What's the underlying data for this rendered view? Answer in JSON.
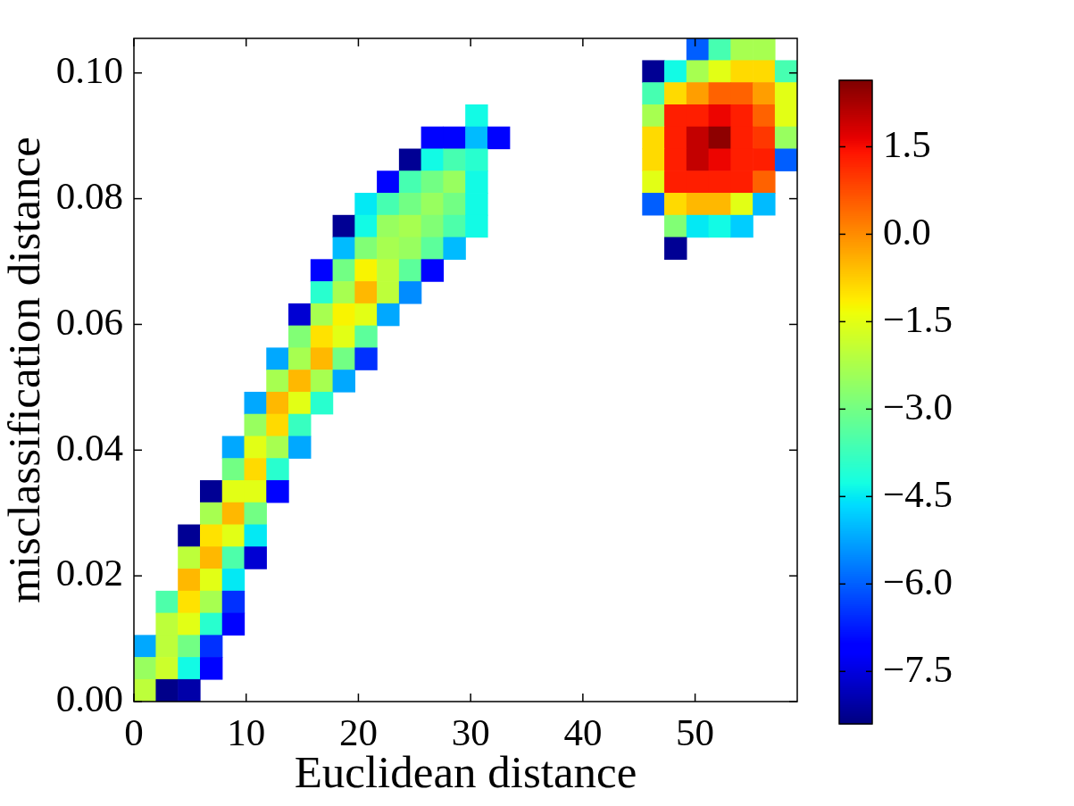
{
  "chart_data": {
    "type": "heatmap",
    "xlabel": "Euclidean distance",
    "ylabel": "misclassification distance",
    "cells": [
      [
        null,
        null,
        null,
        null,
        null,
        null,
        null,
        null,
        null,
        null,
        null,
        null,
        null,
        null,
        null,
        null,
        null,
        null,
        null,
        null,
        null,
        null,
        null,
        null,
        null,
        -6,
        -3.6,
        -2.3,
        -2.3,
        null
      ],
      [
        null,
        null,
        null,
        null,
        null,
        null,
        null,
        null,
        null,
        null,
        null,
        null,
        null,
        null,
        null,
        null,
        null,
        null,
        null,
        null,
        null,
        null,
        null,
        -8.2,
        -4.3,
        -2.3,
        -1.5,
        -0.9,
        -0.9,
        -3.6
      ],
      [
        null,
        null,
        null,
        null,
        null,
        null,
        null,
        null,
        null,
        null,
        null,
        null,
        null,
        null,
        null,
        null,
        null,
        null,
        null,
        null,
        null,
        null,
        null,
        -3.6,
        -0.9,
        -0.2,
        0.5,
        0.5,
        -0.2,
        -1.5
      ],
      [
        null,
        null,
        null,
        null,
        null,
        null,
        null,
        null,
        null,
        null,
        null,
        null,
        null,
        null,
        null,
        -4.3,
        null,
        null,
        null,
        null,
        null,
        null,
        null,
        -2.3,
        1.3,
        1.3,
        1.6,
        1.3,
        0.5,
        -1.5
      ],
      [
        null,
        null,
        null,
        null,
        null,
        null,
        null,
        null,
        null,
        null,
        null,
        null,
        null,
        -7,
        -7,
        -5,
        -7,
        null,
        null,
        null,
        null,
        null,
        null,
        -0.9,
        1.3,
        2,
        2.5,
        1.3,
        1,
        -2.5
      ],
      [
        null,
        null,
        null,
        null,
        null,
        null,
        null,
        null,
        null,
        null,
        null,
        null,
        -8.2,
        -4.3,
        -3.6,
        -4,
        null,
        null,
        null,
        null,
        null,
        null,
        null,
        -0.9,
        1.3,
        2,
        1.6,
        1.3,
        1.3,
        -6
      ],
      [
        null,
        null,
        null,
        null,
        null,
        null,
        null,
        null,
        null,
        null,
        null,
        -7,
        -3.6,
        -3,
        -2.5,
        -4.3,
        null,
        null,
        null,
        null,
        null,
        null,
        null,
        -1.5,
        1.3,
        1.3,
        1.3,
        1.3,
        0.5,
        null
      ],
      [
        null,
        null,
        null,
        null,
        null,
        null,
        null,
        null,
        null,
        null,
        -4.5,
        -3.6,
        -3,
        -2.5,
        -3,
        -4.3,
        null,
        null,
        null,
        null,
        null,
        null,
        null,
        -6,
        -0.9,
        -0.5,
        -0.5,
        -1.5,
        -5,
        null
      ],
      [
        null,
        null,
        null,
        null,
        null,
        null,
        null,
        null,
        null,
        -8.2,
        -4.3,
        -2.5,
        -2.3,
        -2.8,
        -3.5,
        -4.3,
        null,
        null,
        null,
        null,
        null,
        null,
        null,
        null,
        -2.8,
        -4.5,
        -4.3,
        -4.8,
        null,
        null
      ],
      [
        null,
        null,
        null,
        null,
        null,
        null,
        null,
        null,
        null,
        -5,
        -2.8,
        -2.3,
        -2.5,
        -3.3,
        -5,
        null,
        null,
        null,
        null,
        null,
        null,
        null,
        null,
        null,
        -8.2,
        null,
        null,
        null,
        null,
        null
      ],
      [
        null,
        null,
        null,
        null,
        null,
        null,
        null,
        null,
        -7,
        -3,
        -1.2,
        -2,
        -3.3,
        -7,
        null,
        null,
        null,
        null,
        null,
        null,
        null,
        null,
        null,
        null,
        null,
        null,
        null,
        null,
        null,
        null
      ],
      [
        null,
        null,
        null,
        null,
        null,
        null,
        null,
        null,
        -4,
        -2.3,
        -0.5,
        -2,
        -5.5,
        null,
        null,
        null,
        null,
        null,
        null,
        null,
        null,
        null,
        null,
        null,
        null,
        null,
        null,
        null,
        null,
        null
      ],
      [
        null,
        null,
        null,
        null,
        null,
        null,
        null,
        -7.6,
        -2.3,
        -1.2,
        -1.5,
        -5.2,
        null,
        null,
        null,
        null,
        null,
        null,
        null,
        null,
        null,
        null,
        null,
        null,
        null,
        null,
        null,
        null,
        null,
        null
      ],
      [
        null,
        null,
        null,
        null,
        null,
        null,
        null,
        -2.8,
        -1,
        -1.5,
        -3.3,
        null,
        null,
        null,
        null,
        null,
        null,
        null,
        null,
        null,
        null,
        null,
        null,
        null,
        null,
        null,
        null,
        null,
        null,
        null
      ],
      [
        null,
        null,
        null,
        null,
        null,
        null,
        -5.2,
        -2.3,
        -0.5,
        -3,
        -6.5,
        null,
        null,
        null,
        null,
        null,
        null,
        null,
        null,
        null,
        null,
        null,
        null,
        null,
        null,
        null,
        null,
        null,
        null,
        null
      ],
      [
        null,
        null,
        null,
        null,
        null,
        null,
        -2.3,
        -0.5,
        -2.3,
        -5.2,
        null,
        null,
        null,
        null,
        null,
        null,
        null,
        null,
        null,
        null,
        null,
        null,
        null,
        null,
        null,
        null,
        null,
        null,
        null,
        null
      ],
      [
        null,
        null,
        null,
        null,
        null,
        -5.2,
        -0.5,
        -1.5,
        -4,
        null,
        null,
        null,
        null,
        null,
        null,
        null,
        null,
        null,
        null,
        null,
        null,
        null,
        null,
        null,
        null,
        null,
        null,
        null,
        null,
        null
      ],
      [
        null,
        null,
        null,
        null,
        null,
        -2.5,
        -0.9,
        -3.8,
        null,
        null,
        null,
        null,
        null,
        null,
        null,
        null,
        null,
        null,
        null,
        null,
        null,
        null,
        null,
        null,
        null,
        null,
        null,
        null,
        null,
        null
      ],
      [
        null,
        null,
        null,
        null,
        -5.2,
        -1.5,
        -2.3,
        -5.2,
        null,
        null,
        null,
        null,
        null,
        null,
        null,
        null,
        null,
        null,
        null,
        null,
        null,
        null,
        null,
        null,
        null,
        null,
        null,
        null,
        null,
        null
      ],
      [
        null,
        null,
        null,
        null,
        -3,
        -0.9,
        -4,
        null,
        null,
        null,
        null,
        null,
        null,
        null,
        null,
        null,
        null,
        null,
        null,
        null,
        null,
        null,
        null,
        null,
        null,
        null,
        null,
        null,
        null,
        null
      ],
      [
        null,
        null,
        null,
        -8.2,
        -1.5,
        -1.5,
        -7,
        null,
        null,
        null,
        null,
        null,
        null,
        null,
        null,
        null,
        null,
        null,
        null,
        null,
        null,
        null,
        null,
        null,
        null,
        null,
        null,
        null,
        null,
        null
      ],
      [
        null,
        null,
        null,
        -2.3,
        -0.5,
        -3,
        null,
        null,
        null,
        null,
        null,
        null,
        null,
        null,
        null,
        null,
        null,
        null,
        null,
        null,
        null,
        null,
        null,
        null,
        null,
        null,
        null,
        null,
        null,
        null
      ],
      [
        null,
        null,
        -8.2,
        -1,
        -1.5,
        -4.5,
        null,
        null,
        null,
        null,
        null,
        null,
        null,
        null,
        null,
        null,
        null,
        null,
        null,
        null,
        null,
        null,
        null,
        null,
        null,
        null,
        null,
        null,
        null,
        null
      ],
      [
        null,
        null,
        -2,
        -0.5,
        -3.5,
        -7.6,
        null,
        null,
        null,
        null,
        null,
        null,
        null,
        null,
        null,
        null,
        null,
        null,
        null,
        null,
        null,
        null,
        null,
        null,
        null,
        null,
        null,
        null,
        null,
        null
      ],
      [
        null,
        null,
        -0.5,
        -1.5,
        -4.5,
        null,
        null,
        null,
        null,
        null,
        null,
        null,
        null,
        null,
        null,
        null,
        null,
        null,
        null,
        null,
        null,
        null,
        null,
        null,
        null,
        null,
        null,
        null,
        null,
        null
      ],
      [
        null,
        -3.5,
        -1,
        -2.3,
        -6.5,
        null,
        null,
        null,
        null,
        null,
        null,
        null,
        null,
        null,
        null,
        null,
        null,
        null,
        null,
        null,
        null,
        null,
        null,
        null,
        null,
        null,
        null,
        null,
        null,
        null
      ],
      [
        null,
        -2,
        -1.5,
        -4,
        -7,
        null,
        null,
        null,
        null,
        null,
        null,
        null,
        null,
        null,
        null,
        null,
        null,
        null,
        null,
        null,
        null,
        null,
        null,
        null,
        null,
        null,
        null,
        null,
        null,
        null
      ],
      [
        -5.2,
        -2,
        -3,
        -6.5,
        null,
        null,
        null,
        null,
        null,
        null,
        null,
        null,
        null,
        null,
        null,
        null,
        null,
        null,
        null,
        null,
        null,
        null,
        null,
        null,
        null,
        null,
        null,
        null,
        null,
        null
      ],
      [
        -2.5,
        -1.8,
        -4.3,
        -7,
        null,
        null,
        null,
        null,
        null,
        null,
        null,
        null,
        null,
        null,
        null,
        null,
        null,
        null,
        null,
        null,
        null,
        null,
        null,
        null,
        null,
        null,
        null,
        null,
        null,
        null
      ],
      [
        -2,
        -8.3,
        -8,
        null,
        null,
        null,
        null,
        null,
        null,
        null,
        null,
        null,
        null,
        null,
        null,
        null,
        null,
        null,
        null,
        null,
        null,
        null,
        null,
        null,
        null,
        null,
        null,
        null,
        null,
        null
      ]
    ],
    "xlim": [
      0,
      59.1
    ],
    "ylim": [
      0,
      0.1055
    ],
    "xticks": [
      0,
      10,
      20,
      30,
      40,
      50
    ],
    "yticks": [
      {
        "value": 0,
        "label": "0.00"
      },
      {
        "value": 0.02,
        "label": "0.02"
      },
      {
        "value": 0.04,
        "label": "0.04"
      },
      {
        "value": 0.06,
        "label": "0.06"
      },
      {
        "value": 0.08,
        "label": "0.08"
      },
      {
        "value": 0.1,
        "label": "0.10"
      }
    ],
    "clim": [
      -8.4,
      2.64
    ],
    "cticks": [
      {
        "value": -7.5,
        "label": "−7.5"
      },
      {
        "value": -6,
        "label": "−6.0"
      },
      {
        "value": -4.5,
        "label": "−4.5"
      },
      {
        "value": -3,
        "label": "−3.0"
      },
      {
        "value": -1.5,
        "label": "−1.5"
      },
      {
        "value": 0,
        "label": "0.0"
      },
      {
        "value": 1.5,
        "label": "1.5"
      }
    ]
  }
}
